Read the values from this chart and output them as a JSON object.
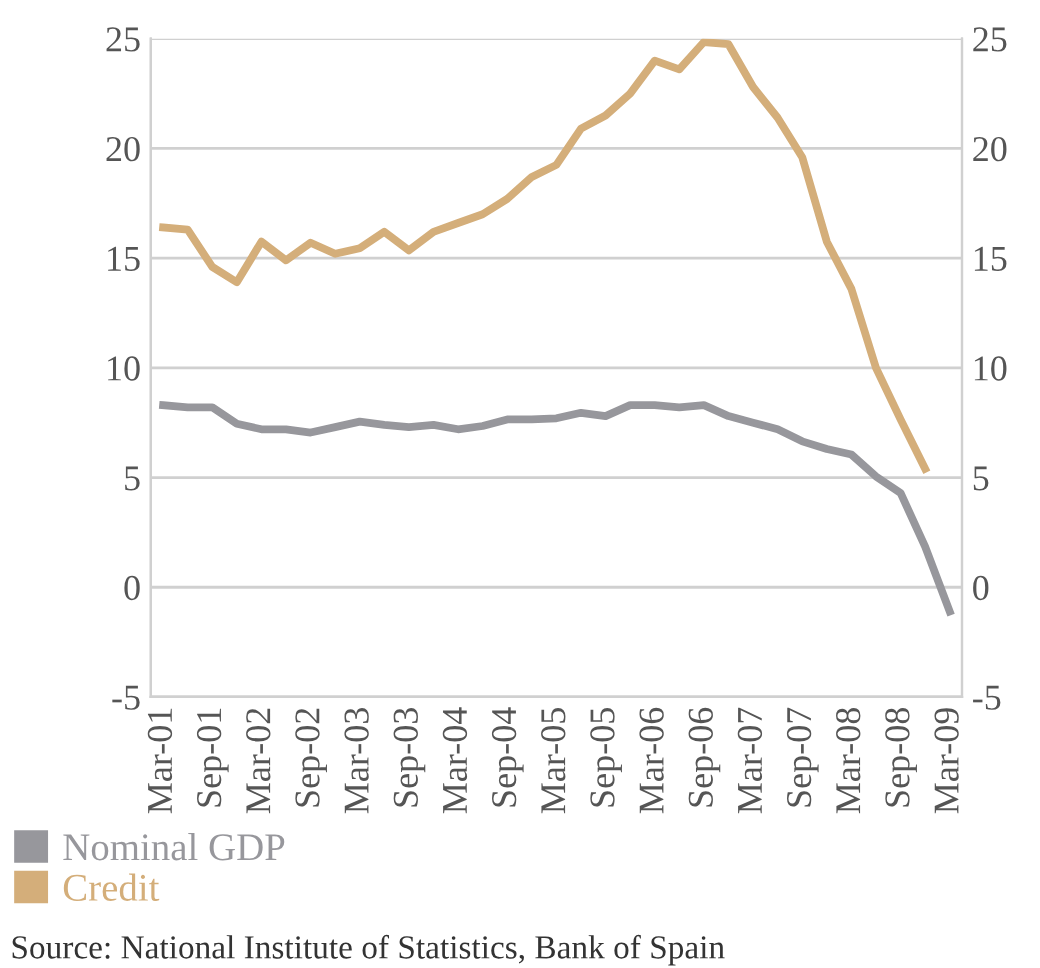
{
  "chart_data": {
    "type": "line",
    "categories": [
      "Mar-01",
      null,
      "Sep-01",
      null,
      "Mar-02",
      null,
      "Sep-02",
      null,
      "Mar-03",
      null,
      "Sep-03",
      null,
      "Mar-04",
      null,
      "Sep-04",
      null,
      "Mar-05",
      null,
      "Sep-05",
      null,
      "Mar-06",
      null,
      "Sep-06",
      null,
      "Mar-07",
      null,
      "Sep-07",
      null,
      "Mar-08",
      null,
      "Sep-08",
      null,
      "Mar-09"
    ],
    "series": [
      {
        "name": "Nominal GDP",
        "color": "#97979c",
        "values": [
          8.3,
          8.2,
          8.2,
          7.45,
          7.2,
          7.2,
          7.05,
          7.3,
          7.55,
          7.4,
          7.3,
          7.4,
          7.2,
          7.35,
          7.65,
          7.65,
          7.7,
          7.95,
          7.8,
          8.3,
          8.3,
          8.2,
          8.3,
          7.8,
          7.5,
          7.2,
          6.65,
          6.3,
          6.05,
          5.05,
          4.3,
          1.85,
          -1.1
        ]
      },
      {
        "name": "Credit",
        "color": "#d4ae7a",
        "values": [
          16.4,
          16.3,
          14.6,
          13.9,
          15.75,
          14.9,
          15.7,
          15.2,
          15.45,
          16.2,
          15.35,
          16.2,
          16.6,
          17.0,
          17.7,
          18.7,
          19.25,
          20.9,
          21.5,
          22.5,
          24.0,
          23.6,
          24.85,
          24.75,
          22.8,
          21.4,
          19.6,
          15.75,
          13.6,
          10.0,
          7.65,
          5.4,
          null
        ]
      }
    ],
    "ylim": [
      -5,
      25
    ],
    "yticks": [
      -5,
      0,
      5,
      10,
      15,
      20,
      25
    ],
    "y2lim": [
      -5,
      25
    ],
    "y2ticks": [
      -5,
      0,
      5,
      10,
      15,
      20,
      25
    ],
    "grid": "y",
    "legend": "bottom left",
    "marker": "none",
    "line_style": "solid",
    "annotations": [
      "Source: National Institute of Statistics, Bank of Spain"
    ]
  }
}
